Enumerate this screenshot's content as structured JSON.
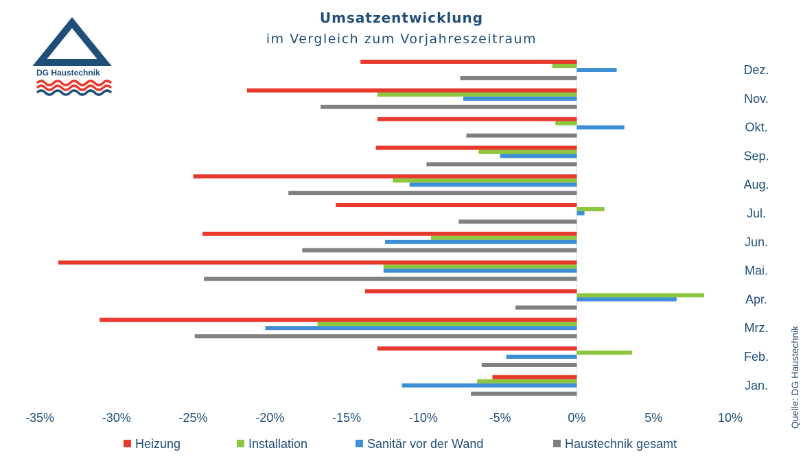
{
  "title": "Umsatzentwicklung",
  "subtitle": "im Vergleich zum Vorjahreszeitraum",
  "logo": {
    "text": "DG Haustechnik",
    "colors": {
      "navy": "#1f4e79",
      "red": "#e8392d",
      "blue": "#1f4e79"
    }
  },
  "source": "Quelle: DG Haustechnik",
  "chart_data": {
    "type": "bar",
    "orientation": "horizontal",
    "title": "Umsatzentwicklung",
    "subtitle": "im Vergleich zum Vorjahreszeitraum",
    "xlabel": "",
    "ylabel": "",
    "xlim": [
      -35,
      10
    ],
    "xticks": [
      -35,
      -30,
      -25,
      -20,
      -15,
      -10,
      -5,
      0,
      5,
      10
    ],
    "xtick_labels": [
      "-35%",
      "-30%",
      "-25%",
      "-20%",
      "-15%",
      "-10%",
      "-5%",
      "0%",
      "5%",
      "10%"
    ],
    "categories": [
      "Dez.",
      "Nov.",
      "Okt.",
      "Sep.",
      "Aug.",
      "Jul.",
      "Jun.",
      "Mai.",
      "Apr.",
      "Mrz.",
      "Feb.",
      "Jan."
    ],
    "legend_position": "bottom",
    "series": [
      {
        "name": "Heizung",
        "color": "#e8392d",
        "values": [
          -14.1,
          -21.5,
          -13.0,
          -13.1,
          -25.0,
          -15.7,
          -24.4,
          -33.8,
          -13.8,
          -31.1,
          -13.0,
          -5.5
        ]
      },
      {
        "name": "Installation",
        "color": "#8dc63f",
        "values": [
          -1.6,
          -13.0,
          -1.4,
          -6.4,
          -12.0,
          1.8,
          -9.5,
          -12.6,
          8.3,
          -16.9,
          3.6,
          -6.5
        ]
      },
      {
        "name": "Sanitär vor der Wand",
        "color": "#3f8fd6",
        "values": [
          2.6,
          -7.4,
          3.1,
          -5.0,
          -10.9,
          0.5,
          -12.5,
          -12.6,
          6.5,
          -20.3,
          -4.6,
          -11.4
        ]
      },
      {
        "name": "Haustechnik gesamt",
        "color": "#808080",
        "values": [
          -7.6,
          -16.7,
          -7.2,
          -9.8,
          -18.8,
          -7.7,
          -17.9,
          -24.3,
          -4.0,
          -24.9,
          -6.2,
          -6.9
        ]
      }
    ]
  }
}
